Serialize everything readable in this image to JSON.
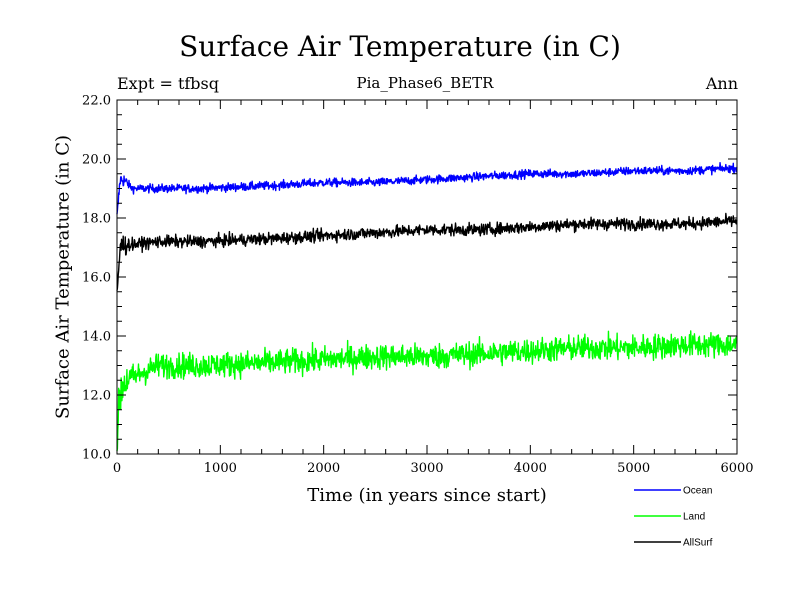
{
  "chart_data": {
    "type": "line",
    "title": "Surface Air Temperature (in C)",
    "subtitle": "Pia_Phase6_BETR",
    "top_left_label": "Expt = tfbsq",
    "top_right_label": "Ann",
    "xlabel": "Time (in years since start)",
    "ylabel": "Surface Air Temperature (in C)",
    "xlim": [
      0,
      6000
    ],
    "ylim": [
      10.0,
      22.0
    ],
    "x_ticks": [
      "0",
      "1000",
      "2000",
      "3000",
      "4000",
      "5000",
      "6000"
    ],
    "y_ticks": [
      "10.0",
      "12.0",
      "14.0",
      "16.0",
      "18.0",
      "20.0",
      "22.0"
    ],
    "series": [
      {
        "name": "Ocean",
        "color": "#0000ff",
        "x": [
          0,
          30,
          60,
          150,
          400,
          800,
          1500,
          2000,
          2500,
          3000,
          3500,
          4000,
          4500,
          5000,
          5500,
          6000
        ],
        "values": [
          18.0,
          19.3,
          19.3,
          19.0,
          19.0,
          19.0,
          19.1,
          19.2,
          19.2,
          19.3,
          19.4,
          19.5,
          19.5,
          19.6,
          19.6,
          19.7
        ],
        "noise": 0.14
      },
      {
        "name": "Land",
        "color": "#00ff00",
        "x": [
          0,
          30,
          60,
          150,
          400,
          800,
          1500,
          2000,
          2500,
          3000,
          3500,
          4000,
          4500,
          5000,
          5500,
          6000
        ],
        "values": [
          10.5,
          12.0,
          12.4,
          12.6,
          13.0,
          13.0,
          13.1,
          13.2,
          13.3,
          13.3,
          13.4,
          13.5,
          13.6,
          13.6,
          13.7,
          13.7
        ],
        "noise": 0.42
      },
      {
        "name": "AllSurf",
        "color": "#000000",
        "x": [
          0,
          30,
          60,
          150,
          400,
          800,
          1500,
          2000,
          2500,
          3000,
          3500,
          4000,
          4500,
          5000,
          5500,
          6000
        ],
        "values": [
          15.4,
          17.0,
          17.1,
          17.1,
          17.2,
          17.2,
          17.3,
          17.4,
          17.5,
          17.6,
          17.6,
          17.7,
          17.8,
          17.8,
          17.8,
          17.9
        ],
        "noise": 0.2
      }
    ],
    "legend_placement": "bottom-right"
  }
}
